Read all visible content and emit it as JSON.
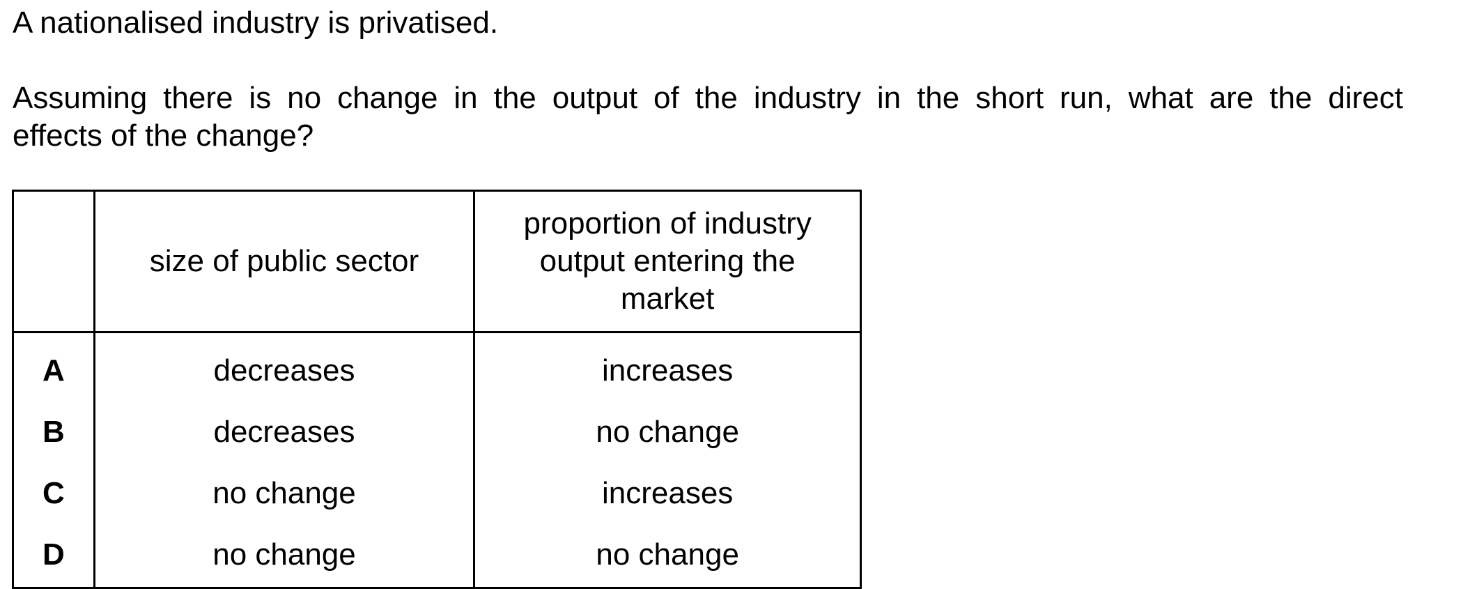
{
  "question": {
    "stem": "A nationalised industry is privatised.",
    "line1": "Assuming there is no change in the output of the industry in the short run, what are the direct",
    "line2": "effects of the change?"
  },
  "table": {
    "headers": {
      "blank": "",
      "col1": "size of public sector",
      "col2_line1": "proportion of industry",
      "col2_line2": "output entering the",
      "col2_line3": "market"
    },
    "rows": [
      {
        "letter": "A",
        "col1": "decreases",
        "col2": "increases"
      },
      {
        "letter": "B",
        "col1": "decreases",
        "col2": "no change"
      },
      {
        "letter": "C",
        "col1": "no change",
        "col2": "increases"
      },
      {
        "letter": "D",
        "col1": "no change",
        "col2": "no change"
      }
    ]
  }
}
